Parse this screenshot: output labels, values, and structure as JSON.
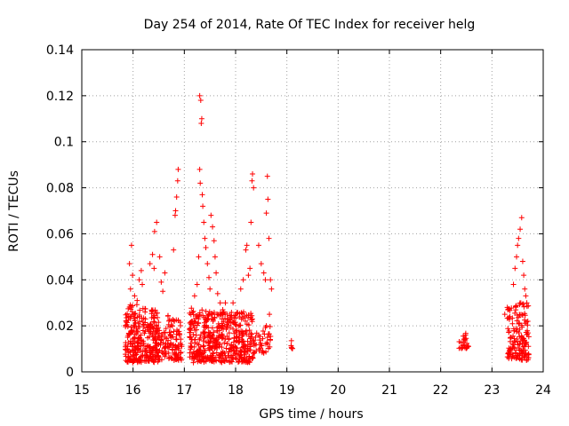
{
  "chart_data": {
    "type": "scatter",
    "title": "Day 254 of 2014, Rate Of TEC Index for receiver helg",
    "xlabel": "GPS time / hours",
    "ylabel": "ROTI / TECUs",
    "xlim": [
      15,
      24
    ],
    "ylim": [
      0,
      0.14
    ],
    "x_ticks": [
      "15",
      "16",
      "17",
      "18",
      "19",
      "20",
      "21",
      "22",
      "23",
      "24"
    ],
    "y_ticks": [
      "0",
      "0.02",
      "0.04",
      "0.06",
      "0.08",
      "0.1",
      "0.12",
      "0.14"
    ],
    "grid": true,
    "marker": "+",
    "series_color": "#ff0000",
    "series": [
      {
        "name": "ROTI",
        "clusters": [
          {
            "x_range": [
              15.85,
              16.1
            ],
            "y_range": [
              0.004,
              0.03
            ],
            "count": 120
          },
          {
            "x_range": [
              16.1,
              16.5
            ],
            "y_range": [
              0.004,
              0.028
            ],
            "count": 170
          },
          {
            "x_range": [
              16.5,
              16.95
            ],
            "y_range": [
              0.005,
              0.025
            ],
            "count": 120
          },
          {
            "x_range": [
              17.1,
              17.5
            ],
            "y_range": [
              0.004,
              0.028
            ],
            "count": 170
          },
          {
            "x_range": [
              17.5,
              17.95
            ],
            "y_range": [
              0.004,
              0.026
            ],
            "count": 170
          },
          {
            "x_range": [
              17.95,
              18.35
            ],
            "y_range": [
              0.004,
              0.026
            ],
            "count": 150
          },
          {
            "x_range": [
              18.35,
              18.7
            ],
            "y_range": [
              0.008,
              0.02
            ],
            "count": 40
          },
          {
            "x_range": [
              19.05,
              19.12
            ],
            "y_range": [
              0.01,
              0.015
            ],
            "count": 6
          },
          {
            "x_range": [
              22.35,
              22.55
            ],
            "y_range": [
              0.01,
              0.017
            ],
            "count": 25
          },
          {
            "x_range": [
              23.3,
              23.72
            ],
            "y_range": [
              0.005,
              0.03
            ],
            "count": 150
          }
        ],
        "points": [
          [
            15.93,
            0.047
          ],
          [
            15.97,
            0.055
          ],
          [
            15.95,
            0.036
          ],
          [
            15.99,
            0.042
          ],
          [
            16.03,
            0.033
          ],
          [
            16.12,
            0.04
          ],
          [
            16.18,
            0.038
          ],
          [
            16.16,
            0.044
          ],
          [
            16.08,
            0.031
          ],
          [
            16.33,
            0.047
          ],
          [
            16.38,
            0.051
          ],
          [
            16.42,
            0.061
          ],
          [
            16.46,
            0.065
          ],
          [
            16.41,
            0.045
          ],
          [
            16.52,
            0.05
          ],
          [
            16.55,
            0.039
          ],
          [
            16.58,
            0.035
          ],
          [
            16.62,
            0.043
          ],
          [
            16.82,
            0.068
          ],
          [
            16.85,
            0.076
          ],
          [
            16.87,
            0.083
          ],
          [
            16.88,
            0.088
          ],
          [
            16.79,
            0.053
          ],
          [
            16.83,
            0.07
          ],
          [
            17.12,
            0.019
          ],
          [
            17.18,
            0.02
          ],
          [
            17.2,
            0.033
          ],
          [
            17.25,
            0.038
          ],
          [
            17.28,
            0.05
          ],
          [
            17.3,
            0.088
          ],
          [
            17.3,
            0.12
          ],
          [
            17.32,
            0.118
          ],
          [
            17.34,
            0.11
          ],
          [
            17.33,
            0.108
          ],
          [
            17.31,
            0.082
          ],
          [
            17.35,
            0.077
          ],
          [
            17.36,
            0.072
          ],
          [
            17.38,
            0.065
          ],
          [
            17.4,
            0.058
          ],
          [
            17.42,
            0.054
          ],
          [
            17.45,
            0.047
          ],
          [
            17.48,
            0.041
          ],
          [
            17.5,
            0.036
          ],
          [
            17.52,
            0.068
          ],
          [
            17.55,
            0.063
          ],
          [
            17.58,
            0.057
          ],
          [
            17.6,
            0.05
          ],
          [
            17.62,
            0.043
          ],
          [
            17.65,
            0.034
          ],
          [
            17.7,
            0.03
          ],
          [
            17.75,
            0.027
          ],
          [
            17.8,
            0.03
          ],
          [
            17.95,
            0.03
          ],
          [
            18.0,
            0.025
          ],
          [
            18.1,
            0.036
          ],
          [
            18.15,
            0.04
          ],
          [
            18.2,
            0.053
          ],
          [
            18.22,
            0.055
          ],
          [
            18.25,
            0.042
          ],
          [
            18.28,
            0.045
          ],
          [
            18.3,
            0.065
          ],
          [
            18.32,
            0.083
          ],
          [
            18.33,
            0.086
          ],
          [
            18.35,
            0.08
          ],
          [
            18.45,
            0.055
          ],
          [
            18.5,
            0.047
          ],
          [
            18.55,
            0.043
          ],
          [
            18.58,
            0.04
          ],
          [
            18.6,
            0.069
          ],
          [
            18.62,
            0.085
          ],
          [
            18.63,
            0.075
          ],
          [
            18.65,
            0.058
          ],
          [
            18.68,
            0.04
          ],
          [
            18.7,
            0.036
          ],
          [
            18.66,
            0.025
          ],
          [
            18.6,
            0.02
          ],
          [
            23.25,
            0.025
          ],
          [
            23.3,
            0.028
          ],
          [
            23.35,
            0.024
          ],
          [
            23.42,
            0.038
          ],
          [
            23.45,
            0.045
          ],
          [
            23.48,
            0.05
          ],
          [
            23.5,
            0.055
          ],
          [
            23.52,
            0.058
          ],
          [
            23.55,
            0.062
          ],
          [
            23.58,
            0.067
          ],
          [
            23.6,
            0.048
          ],
          [
            23.62,
            0.042
          ],
          [
            23.64,
            0.036
          ],
          [
            23.66,
            0.033
          ],
          [
            23.68,
            0.03
          ],
          [
            23.7,
            0.022
          ]
        ]
      }
    ]
  }
}
